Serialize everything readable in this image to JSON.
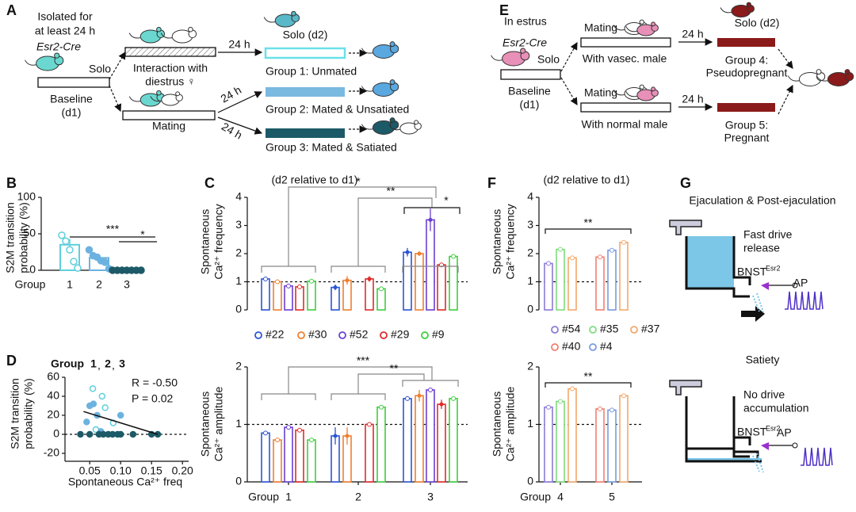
{
  "panel_labels": [
    "A",
    "B",
    "C",
    "D",
    "E",
    "F",
    "G"
  ],
  "diagram_a": {
    "isolated": [
      "Isolated for",
      "at least 24 h"
    ],
    "genotype": "Esr2-Cre",
    "solo": "Solo",
    "baseline": [
      "Baseline",
      "(d1)"
    ],
    "interaction": [
      "Interaction with",
      "diestrus ♀"
    ],
    "mating": "Mating",
    "delays": [
      "24 h",
      "24 h",
      "24 h"
    ],
    "solo_d2": "Solo (d2)",
    "groups": [
      "Group 1: Unmated",
      "Group 2: Mated & Unsatiated",
      "Group 3: Mated & Satiated"
    ]
  },
  "diagram_e": {
    "estrus": "In estrus",
    "genotype": "Esr2-Cre",
    "solo": "Solo",
    "baseline": [
      "Baseline",
      "(d1)"
    ],
    "matings": [
      {
        "label": "Mating",
        "partner": "With vasec. male"
      },
      {
        "label": "Mating",
        "partner": "With normal male"
      }
    ],
    "delays": [
      "24 h",
      "24 h"
    ],
    "solo_d2": "Solo (d2)",
    "groups": [
      [
        "Group 4:",
        "Pseudopregnant"
      ],
      [
        "Group 5:",
        "Pregnant"
      ]
    ]
  },
  "diagram_g": {
    "panels": [
      {
        "title": "Ejaculation & Post-ejaculation",
        "note": [
          "Fast drive",
          "release"
        ],
        "region": "BNST",
        "superscript": "Esr2",
        "output": "AP"
      },
      {
        "title": "Satiety",
        "note": [
          "No drive",
          "accumulation"
        ],
        "region": "BNST",
        "superscript": "Esr2",
        "output": "AP"
      }
    ]
  },
  "chart_data": [
    {
      "type": "bar",
      "ylabel": [
        "S2M transition",
        "probability (%)"
      ],
      "xlabel": "Group",
      "categories": [
        "1",
        "2",
        "3"
      ],
      "values": [
        35,
        17,
        0
      ],
      "errors": [
        8,
        5,
        0
      ],
      "colors": [
        "#5fcfdb",
        "#6cb2e0",
        "#1d5a68"
      ],
      "points": [
        [
          48,
          40,
          28,
          12,
          3
        ],
        [
          28,
          20,
          18,
          13,
          11,
          2
        ],
        [
          0,
          0,
          0,
          0,
          0,
          0,
          0
        ]
      ],
      "ylim": [
        0,
        100
      ],
      "yticks": [
        0,
        50,
        100
      ],
      "annotations": [
        "***",
        "*"
      ]
    },
    {
      "type": "grouped-bar",
      "subtitle": "(d2 relative to d1)",
      "ylabel": [
        "Spontaneous",
        "Ca²⁺ frequency"
      ],
      "series": [
        {
          "name": "#22",
          "color": "#2b55d4",
          "values": [
            1.1,
            0.8,
            2.05
          ],
          "errors": [
            0,
            0.1,
            0.15
          ]
        },
        {
          "name": "#30",
          "color": "#f07f2e",
          "values": [
            1.0,
            1.05,
            2.0
          ],
          "errors": [
            0,
            0.15,
            0.08
          ]
        },
        {
          "name": "#52",
          "color": "#6a3fd0",
          "values": [
            0.85,
            null,
            3.2
          ],
          "errors": [
            0,
            null,
            0.4
          ]
        },
        {
          "name": "#29",
          "color": "#e02b2b",
          "values": [
            0.82,
            1.1,
            1.6
          ],
          "errors": [
            0,
            0.1,
            0
          ]
        },
        {
          "name": "#9",
          "color": "#3ecf3e",
          "values": [
            1.02,
            0.75,
            1.9
          ],
          "errors": [
            0,
            0,
            0
          ]
        }
      ],
      "ylim": [
        0,
        4
      ],
      "yticks": [
        0,
        1,
        2,
        3,
        4
      ],
      "reference": 1,
      "annotations": [
        "*",
        "**",
        "*"
      ]
    },
    {
      "type": "grouped-bar",
      "ylabel": [
        "Spontaneous",
        "Ca²⁺ amplitude"
      ],
      "xlabel": "Group",
      "categories": [
        "1",
        "2",
        "3"
      ],
      "series": [
        {
          "color": "#2b55d4",
          "values": [
            0.85,
            0.8,
            1.45
          ],
          "errors": [
            0,
            0.15,
            0
          ]
        },
        {
          "color": "#f07f2e",
          "values": [
            0.73,
            0.8,
            1.5
          ],
          "errors": [
            0,
            0.15,
            0.1
          ]
        },
        {
          "color": "#6a3fd0",
          "values": [
            0.95,
            null,
            1.6
          ],
          "errors": [
            0,
            null,
            0
          ]
        },
        {
          "color": "#e02b2b",
          "values": [
            0.9,
            1.0,
            1.35
          ],
          "errors": [
            0,
            0,
            0.08
          ]
        },
        {
          "color": "#3ecf3e",
          "values": [
            0.73,
            1.3,
            1.45
          ],
          "errors": [
            0,
            0,
            0
          ]
        }
      ],
      "ylim": [
        0,
        2
      ],
      "yticks": [
        0,
        1,
        2
      ],
      "reference": 1,
      "annotations": [
        "***",
        "**"
      ]
    },
    {
      "type": "scatter",
      "title": "Group",
      "separator": ",",
      "ylabel": [
        "S2M transition",
        "probability (%)"
      ],
      "xlabel": "Spontaneous Ca²⁺ freq",
      "series": [
        {
          "name": "1",
          "color": "#5fcfdb",
          "x": [
            0.055,
            0.07,
            0.075,
            0.088,
            0.06
          ],
          "y": [
            48,
            40,
            28,
            12,
            5
          ]
        },
        {
          "name": "2",
          "color": "#6cb2e0",
          "x": [
            0.05,
            0.056,
            0.062,
            0.045,
            0.1,
            0.068
          ],
          "y": [
            30,
            32,
            20,
            13,
            20,
            3
          ]
        },
        {
          "name": "3",
          "color": "#1d5a68",
          "x": [
            0.035,
            0.05,
            0.065,
            0.072,
            0.08,
            0.087,
            0.095,
            0.1,
            0.12,
            0.15,
            0.16
          ],
          "y": [
            0,
            0,
            0,
            0,
            0,
            0,
            0,
            0,
            0,
            0,
            0
          ]
        }
      ],
      "xlim": [
        0.01,
        0.21
      ],
      "xticks": [
        0.05,
        {
          "value": 0.1,
          "label": "0.10"
        },
        0.15,
        {
          "value": 0.2,
          "label": "0.20"
        }
      ],
      "ylim": [
        -20,
        60
      ],
      "yticks": [
        -20,
        0,
        20,
        40,
        60
      ],
      "reference": 0,
      "fit": {
        "x": [
          0.04,
          0.16
        ],
        "y": [
          24,
          0
        ]
      },
      "annotations": [
        "R = -0.50",
        "P = 0.02"
      ]
    },
    {
      "type": "grouped-bar",
      "subtitle": "(d2 relative to d1)",
      "ylabel": [
        "Spontaneous",
        "Ca²⁺ frequency"
      ],
      "series": [
        {
          "name": "#54",
          "color": "#8d7bd8",
          "values": [
            1.65,
            null
          ]
        },
        {
          "name": "#35",
          "color": "#7fdc7f",
          "values": [
            2.15,
            null
          ]
        },
        {
          "name": "#40",
          "color": "#f08070",
          "values": [
            null,
            1.88
          ]
        },
        {
          "name": "#4",
          "color": "#7a9be0",
          "values": [
            null,
            2.12
          ]
        },
        {
          "name": "#37",
          "color": "#f4a86b",
          "values": [
            1.85,
            2.4
          ]
        }
      ],
      "ylim": [
        0,
        4
      ],
      "yticks": [
        0,
        1,
        2,
        3,
        4
      ],
      "reference": 1,
      "annotations": [
        "**"
      ]
    },
    {
      "type": "grouped-bar",
      "ylabel": [
        "Spontaneous",
        "Ca²⁺ amplitude"
      ],
      "xlabel": "Group",
      "categories": [
        "4",
        "5"
      ],
      "series": [
        {
          "color": "#8d7bd8",
          "values": [
            1.3,
            null
          ]
        },
        {
          "color": "#7fdc7f",
          "values": [
            1.4,
            null
          ]
        },
        {
          "color": "#f08070",
          "values": [
            null,
            1.27
          ]
        },
        {
          "color": "#7a9be0",
          "values": [
            null,
            1.25
          ]
        },
        {
          "color": "#f4a86b",
          "values": [
            1.62,
            1.5
          ]
        }
      ],
      "ylim": [
        0,
        2
      ],
      "yticks": [
        0,
        1,
        2
      ],
      "reference": 1,
      "annotations": [
        "**"
      ]
    }
  ]
}
